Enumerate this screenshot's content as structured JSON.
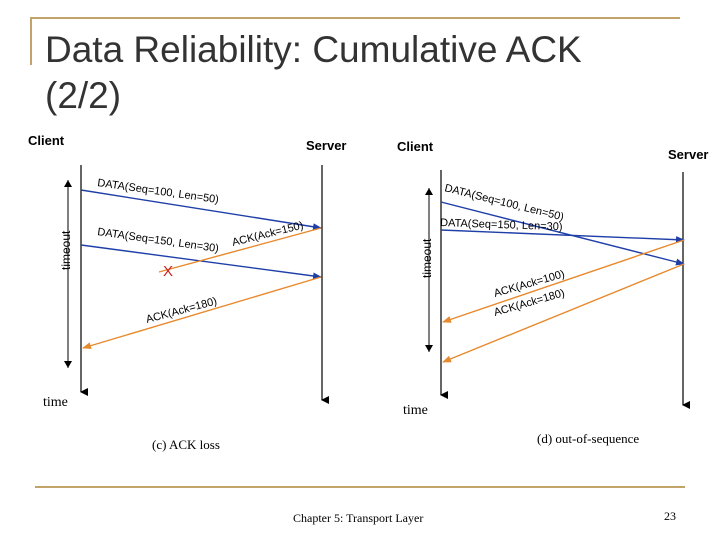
{
  "slide": {
    "title": "Data Reliability: Cumulative ACK (2/2)",
    "footer": "Chapter 5: Transport Layer",
    "page_number": "23"
  },
  "colors": {
    "decoration": "#c2a36a",
    "data_arrow": "#1f3fa8",
    "ack_arrow": "#e8892c",
    "loss_mark": "#cc2222",
    "timeline": "#000000"
  },
  "diagram_c": {
    "client_label": "Client",
    "server_label": "Server",
    "timeout_label": "timeout",
    "time_label": "time",
    "caption": "(c) ACK loss",
    "data1": "DATA(Seq=100, Len=50)",
    "data2": "DATA(Seq=150, Len=30)",
    "ack_lost": "ACK(Ack=150)",
    "ack": "ACK(Ack=180)",
    "loss_mark": "X"
  },
  "diagram_d": {
    "client_label": "Client",
    "server_label": "Server",
    "timeout_label": "timeout",
    "time_label": "time",
    "caption": "(d) out-of-sequence",
    "data1": "DATA(Seq=100, Len=50)",
    "data2": "DATA(Seq=150, Len=30)",
    "ack1": "ACK(Ack=100)",
    "ack2": "ACK(Ack=180)"
  }
}
